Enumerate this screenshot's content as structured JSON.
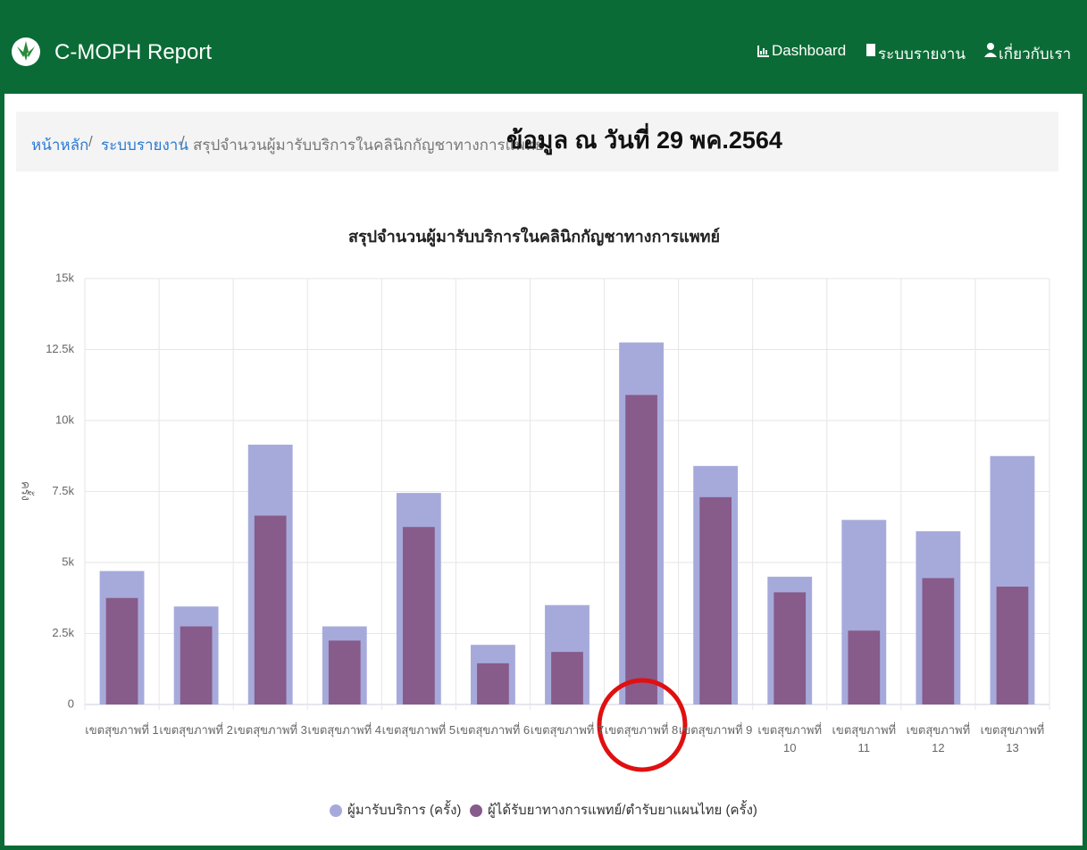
{
  "header": {
    "brand": "C-MOPH Report",
    "nav": [
      "Dashboard",
      "ระบบรายงาน",
      "เกี่ยวกับเรา"
    ]
  },
  "breadcrumb": {
    "items": [
      "หน้าหลัก",
      "ระบบรายงาน",
      "สรุปจำนวนผู้มารับบริการในคลินิกกัญชาทางการแพทย์"
    ],
    "separator": "/"
  },
  "note": "ข้อมูล ณ วันที่ 29 พค.2564",
  "chart_data": {
    "type": "bar",
    "title": "สรุปจำนวนผู้มารับบริการในคลินิกกัญชาทางการแพทย์",
    "y_label": "ครั้ง",
    "categories": [
      "เขตสุขภาพที่ 1",
      "เขตสุขภาพที่ 2",
      "เขตสุขภาพที่ 3",
      "เขตสุขภาพที่ 4",
      "เขตสุขภาพที่ 5",
      "เขตสุขภาพที่ 6",
      "เขตสุขภาพที่ 7",
      "เขตสุขภาพที่ 8",
      "เขตสุขภาพที่ 9",
      "เขตสุขภาพที่ 10",
      "เขตสุขภาพที่ 11",
      "เขตสุขภาพที่ 12",
      "เขตสุขภาพที่ 13"
    ],
    "series": [
      {
        "name": "ผู้มารับบริการ (ครั้ง)",
        "color": "#a6aadb",
        "values": [
          4700,
          3450,
          9150,
          2750,
          7450,
          2100,
          3500,
          12750,
          8400,
          4500,
          6500,
          6100,
          8750
        ]
      },
      {
        "name": "ผู้ได้รับยาทางการแพทย์/ตำรับยาแผนไทย (ครั้ง)",
        "color": "#875b8a",
        "values": [
          3750,
          2750,
          6650,
          2250,
          6250,
          1450,
          1850,
          10900,
          7300,
          3950,
          2600,
          4450,
          4150
        ]
      }
    ],
    "ylim": [
      0,
      15000
    ],
    "yticks": [
      0,
      {
        "value": 2500,
        "label": "2.5k"
      },
      {
        "value": 5000,
        "label": "5k"
      },
      {
        "value": 7500,
        "label": "7.5k"
      },
      {
        "value": 10000,
        "label": "10k"
      },
      {
        "value": 12500,
        "label": "12.5k"
      },
      {
        "value": 15000,
        "label": "15k"
      }
    ],
    "grid": true,
    "legend": "bottom"
  }
}
